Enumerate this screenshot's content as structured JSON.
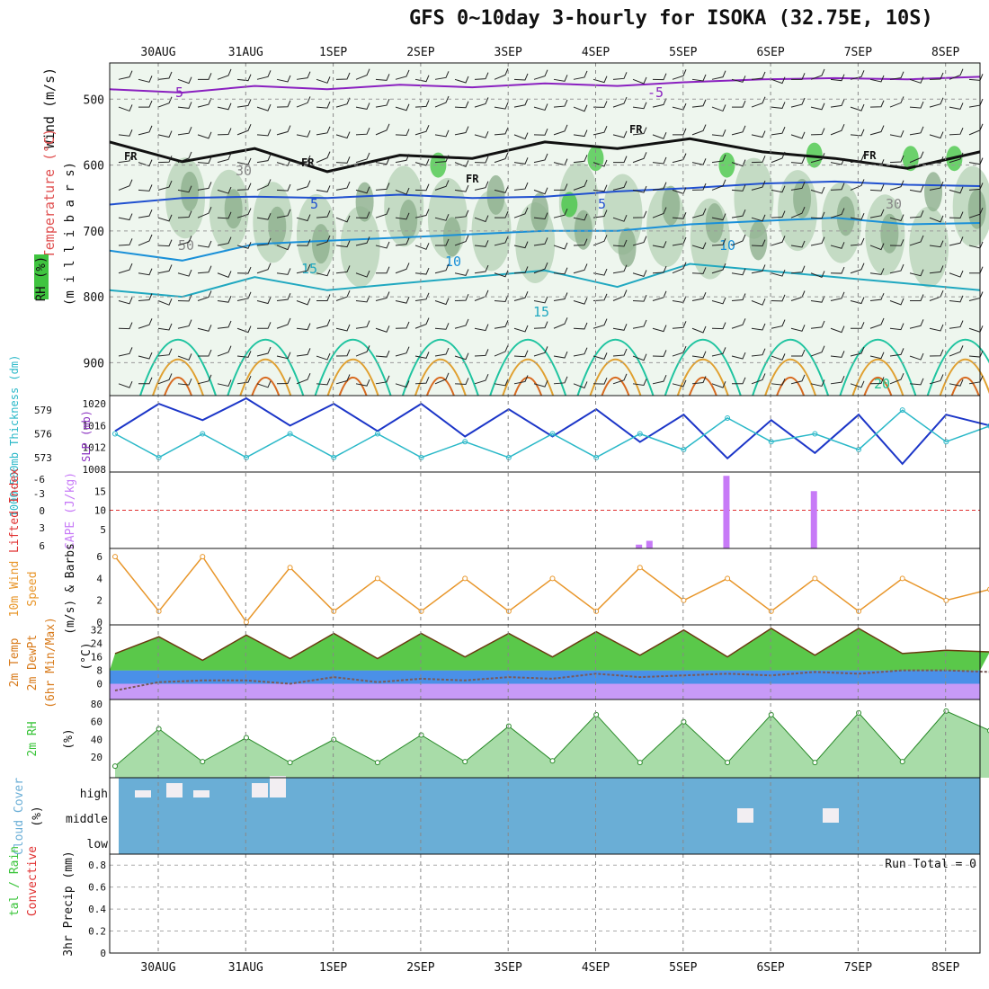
{
  "title": "GFS 0~10day 3-hourly for ISOKA (32.75E, 10S)",
  "colors": {
    "rh": "#3fc43f",
    "slp": "#1c36c8",
    "thickness": "#2ab8c8",
    "cape": "#c77af7",
    "li": "#e03030",
    "wind10m": "#e8962a",
    "cloud": "#6aaed6",
    "temp": "#d87a1a",
    "rh2m": "#3ac43a"
  },
  "chart_data": [
    {
      "type": "heatmap",
      "name": "upper-air cross section",
      "ylabel_parts": [
        "Wind (m/s)",
        "Temperature (°C)",
        "RH (%)",
        "(m i l l i b a r s)"
      ],
      "y_ticks": [
        500,
        600,
        700,
        800,
        900
      ],
      "x_ticks": [
        "30AUG",
        "31AUG",
        "1SEP",
        "2SEP",
        "3SEP",
        "4SEP",
        "5SEP",
        "6SEP",
        "7SEP",
        "8SEP"
      ],
      "ylim": [
        445,
        950
      ],
      "contour_labels": [
        "5",
        "-5",
        "FR",
        "FR",
        "FR",
        "FR",
        "FR",
        "5",
        "5",
        "10",
        "10",
        "15",
        "15",
        "20",
        "30",
        "30",
        "50"
      ],
      "isotherms": [
        {
          "name": "-5",
          "pressure": [
            485,
            490,
            480,
            485,
            478,
            482,
            476,
            480,
            474,
            470,
            468,
            470,
            466
          ]
        },
        {
          "name": "FR",
          "pressure": [
            565,
            595,
            575,
            610,
            585,
            590,
            565,
            575,
            560,
            580,
            590,
            605,
            580
          ]
        },
        {
          "name": "5",
          "pressure": [
            660,
            650,
            648,
            650,
            645,
            650,
            648,
            640,
            635,
            628,
            625,
            630,
            632
          ]
        },
        {
          "name": "10",
          "pressure": [
            730,
            745,
            720,
            715,
            710,
            705,
            700,
            700,
            690,
            685,
            680,
            690,
            688
          ]
        },
        {
          "name": "15",
          "pressure": [
            790,
            800,
            770,
            790,
            780,
            770,
            760,
            785,
            750,
            760,
            770,
            780,
            790
          ]
        }
      ]
    },
    {
      "type": "line",
      "name": "SLP and thickness",
      "ylabels": [
        "SLP (mb)",
        "1000-500mb Thickness (dm)"
      ],
      "y_ticks_slp": [
        1008,
        1012,
        1016,
        1020
      ],
      "y_ticks_thickness": [
        573,
        576,
        579
      ],
      "x_day_offsets": [
        0,
        0.5,
        1,
        1.5,
        2,
        2.5,
        3,
        3.5,
        4,
        4.5,
        5,
        5.5,
        6,
        6.5,
        7,
        7.5,
        8,
        8.5,
        9,
        9.5,
        10
      ],
      "series": [
        {
          "name": "SLP (mb)",
          "values": [
            1015,
            1020,
            1017,
            1021,
            1016,
            1020,
            1015,
            1020,
            1014,
            1019,
            1014,
            1019,
            1013,
            1018,
            1010,
            1017,
            1011,
            1018,
            1009,
            1018,
            1016
          ]
        },
        {
          "name": "1000-500mb Thickness (dm)",
          "values": [
            576,
            573,
            576,
            573,
            576,
            573,
            576,
            573,
            575,
            573,
            576,
            573,
            576,
            574,
            578,
            575,
            576,
            574,
            579,
            575,
            577
          ]
        }
      ]
    },
    {
      "type": "bar",
      "name": "CAPE and lifted index",
      "ylabels": [
        "Lifted Index",
        "CAPE (J/kg)"
      ],
      "y_ticks_li": [
        "-6",
        "-3",
        "0",
        "3",
        "6"
      ],
      "y_ticks_cape": [
        5,
        10,
        15
      ],
      "bars": [
        {
          "day": 5.5,
          "value": 1
        },
        {
          "day": 5.62,
          "value": 2
        },
        {
          "day": 6.5,
          "value": 19
        },
        {
          "day": 7.5,
          "value": 15
        }
      ]
    },
    {
      "type": "line",
      "name": "10m wind",
      "ylabel_parts": [
        "10m Wind",
        "Speed",
        "(m/s) & Barbs"
      ],
      "y_ticks": [
        0,
        2,
        4,
        6
      ],
      "series": [
        {
          "name": "10m Wind Speed",
          "values": [
            6,
            1,
            6,
            0,
            5,
            1,
            4,
            1,
            4,
            1,
            4,
            1,
            5,
            2,
            4,
            1,
            4,
            1,
            4,
            2,
            3
          ]
        }
      ]
    },
    {
      "type": "area",
      "name": "2m temperature",
      "ylabel_parts": [
        "2m Temp",
        "2m DewPt",
        "(6hr Min/Max)"
      ],
      "unit": "(°C)",
      "y_ticks": [
        0,
        8,
        16,
        24,
        32
      ],
      "series": [
        {
          "name": "2m Temp",
          "values": [
            18,
            28,
            14,
            29,
            15,
            30,
            15,
            30,
            16,
            30,
            16,
            31,
            17,
            32,
            16,
            33,
            17,
            33,
            18,
            20,
            19
          ]
        },
        {
          "name": "2m DewPt",
          "values": [
            -4,
            1,
            2,
            2,
            0,
            4,
            1,
            3,
            2,
            4,
            3,
            6,
            4,
            5,
            6,
            5,
            7,
            6,
            8,
            8,
            7
          ]
        }
      ]
    },
    {
      "type": "area",
      "name": "2m relative humidity",
      "ylabel": "2m RH",
      "unit": "(%)",
      "y_ticks": [
        20,
        40,
        60,
        80
      ],
      "series": [
        {
          "name": "2m RH",
          "values": [
            10,
            52,
            15,
            42,
            14,
            40,
            14,
            45,
            15,
            55,
            16,
            68,
            14,
            60,
            14,
            68,
            14,
            70,
            15,
            72,
            50
          ]
        }
      ]
    },
    {
      "type": "bar",
      "name": "cloud cover",
      "ylabel": "Cloud Cover",
      "unit": "(%)",
      "levels": [
        "high",
        "middle",
        "low"
      ]
    },
    {
      "type": "bar",
      "name": "3hr precip",
      "ylabel_parts": [
        "tal / Rain",
        "Convective",
        "3hr Precip (mm)"
      ],
      "y_ticks": [
        0,
        0.2,
        0.4,
        0.6,
        0.8
      ],
      "run_total": "Run Total = 0",
      "values": []
    }
  ]
}
